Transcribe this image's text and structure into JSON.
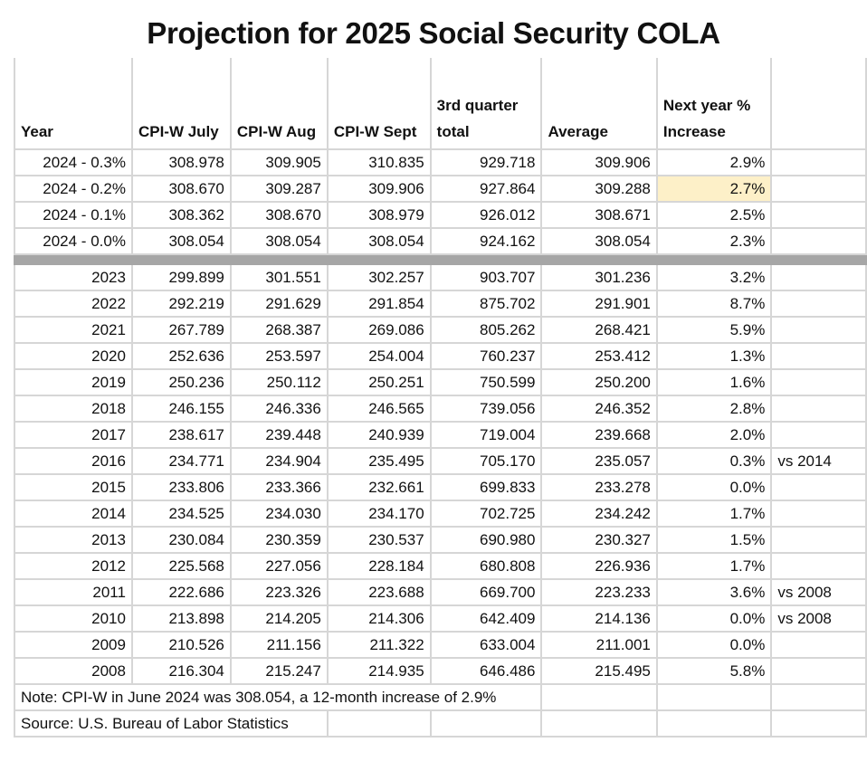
{
  "title": "Projection for 2025 Social Security COLA",
  "headers": [
    "Year",
    "CPI-W July",
    "CPI-W Aug",
    "CPI-W Sept",
    "3rd quarter total",
    "Average",
    "Next year % Increase",
    ""
  ],
  "projection_rows": [
    {
      "year": "2024 - 0.3%",
      "july": "308.978",
      "aug": "309.905",
      "sept": "310.835",
      "total": "929.718",
      "average": "309.906",
      "increase": "2.9%",
      "note": ""
    },
    {
      "year": "2024 - 0.2%",
      "july": "308.670",
      "aug": "309.287",
      "sept": "309.906",
      "total": "927.864",
      "average": "309.288",
      "increase": "2.7%",
      "note": "",
      "highlight": true
    },
    {
      "year": "2024 - 0.1%",
      "july": "308.362",
      "aug": "308.670",
      "sept": "308.979",
      "total": "926.012",
      "average": "308.671",
      "increase": "2.5%",
      "note": ""
    },
    {
      "year": "2024 - 0.0%",
      "july": "308.054",
      "aug": "308.054",
      "sept": "308.054",
      "total": "924.162",
      "average": "308.054",
      "increase": "2.3%",
      "note": ""
    }
  ],
  "historical_rows": [
    {
      "year": "2023",
      "july": "299.899",
      "aug": "301.551",
      "sept": "302.257",
      "total": "903.707",
      "average": "301.236",
      "increase": "3.2%",
      "note": ""
    },
    {
      "year": "2022",
      "july": "292.219",
      "aug": "291.629",
      "sept": "291.854",
      "total": "875.702",
      "average": "291.901",
      "increase": "8.7%",
      "note": ""
    },
    {
      "year": "2021",
      "july": "267.789",
      "aug": "268.387",
      "sept": "269.086",
      "total": "805.262",
      "average": "268.421",
      "increase": "5.9%",
      "note": ""
    },
    {
      "year": "2020",
      "july": "252.636",
      "aug": "253.597",
      "sept": "254.004",
      "total": "760.237",
      "average": "253.412",
      "increase": "1.3%",
      "note": ""
    },
    {
      "year": "2019",
      "july": "250.236",
      "aug": "250.112",
      "sept": "250.251",
      "total": "750.599",
      "average": "250.200",
      "increase": "1.6%",
      "note": ""
    },
    {
      "year": "2018",
      "july": "246.155",
      "aug": "246.336",
      "sept": "246.565",
      "total": "739.056",
      "average": "246.352",
      "increase": "2.8%",
      "note": ""
    },
    {
      "year": "2017",
      "july": "238.617",
      "aug": "239.448",
      "sept": "240.939",
      "total": "719.004",
      "average": "239.668",
      "increase": "2.0%",
      "note": ""
    },
    {
      "year": "2016",
      "july": "234.771",
      "aug": "234.904",
      "sept": "235.495",
      "total": "705.170",
      "average": "235.057",
      "increase": "0.3%",
      "note": "vs 2014"
    },
    {
      "year": "2015",
      "july": "233.806",
      "aug": "233.366",
      "sept": "232.661",
      "total": "699.833",
      "average": "233.278",
      "increase": "0.0%",
      "note": ""
    },
    {
      "year": "2014",
      "july": "234.525",
      "aug": "234.030",
      "sept": "234.170",
      "total": "702.725",
      "average": "234.242",
      "increase": "1.7%",
      "note": ""
    },
    {
      "year": "2013",
      "july": "230.084",
      "aug": "230.359",
      "sept": "230.537",
      "total": "690.980",
      "average": "230.327",
      "increase": "1.5%",
      "note": ""
    },
    {
      "year": "2012",
      "july": "225.568",
      "aug": "227.056",
      "sept": "228.184",
      "total": "680.808",
      "average": "226.936",
      "increase": "1.7%",
      "note": ""
    },
    {
      "year": "2011",
      "july": "222.686",
      "aug": "223.326",
      "sept": "223.688",
      "total": "669.700",
      "average": "223.233",
      "increase": "3.6%",
      "note": "vs 2008"
    },
    {
      "year": "2010",
      "july": "213.898",
      "aug": "214.205",
      "sept": "214.306",
      "total": "642.409",
      "average": "214.136",
      "increase": "0.0%",
      "note": "vs 2008"
    },
    {
      "year": "2009",
      "july": "210.526",
      "aug": "211.156",
      "sept": "211.322",
      "total": "633.004",
      "average": "211.001",
      "increase": "0.0%",
      "note": ""
    },
    {
      "year": "2008",
      "july": "216.304",
      "aug": "215.247",
      "sept": "214.935",
      "total": "646.486",
      "average": "215.495",
      "increase": "5.8%",
      "note": ""
    }
  ],
  "footnote": "Note: CPI-W in June 2024 was 308.054, a 12-month increase of 2.9%",
  "source": "Source: U.S. Bureau of Labor Statistics",
  "colors": {
    "highlight": "#fdf0c8",
    "separator": "#a6a6a6",
    "grid": "#d6d6d6"
  }
}
